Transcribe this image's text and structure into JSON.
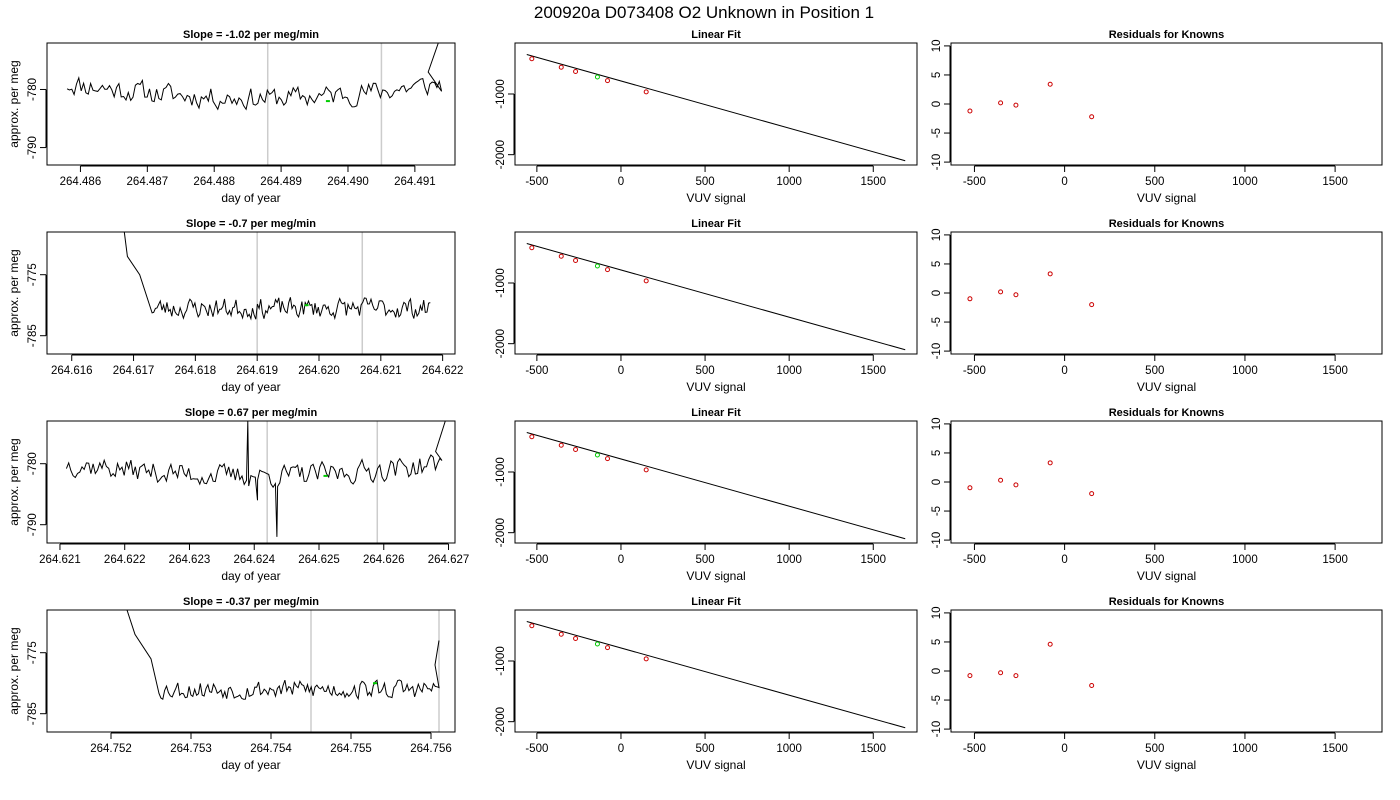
{
  "page": {
    "title": "200920a      D073408   O2 Unknown in Position  1"
  },
  "colors": {
    "trace": "#000000",
    "marker": "#00cc00",
    "vline": "#cccccc",
    "known_points": "#cc0000",
    "unknown_point": "#00cc00"
  },
  "chart_data": [
    {
      "type": "line",
      "panel": "time-trace",
      "row": 1,
      "title": "Slope =  -1.02  per meg/min",
      "xlabel": "day of year",
      "ylabel": "approx. per meg",
      "xlim": [
        264.4855,
        264.4916
      ],
      "ylim": [
        -793,
        -772
      ],
      "xticks": [
        264.486,
        264.487,
        264.488,
        264.489,
        264.49,
        264.491
      ],
      "xtick_labels": [
        "264.486",
        "264.487",
        "264.488",
        "264.489",
        "264.490",
        "264.491"
      ],
      "yticks": [
        -780,
        -790
      ],
      "ytick_labels": [
        "-780",
        "-790"
      ],
      "vlines": [
        264.4888,
        264.4905
      ],
      "marker": [
        264.4897,
        -782
      ],
      "trace": {
        "x0": 264.4858,
        "x1": 264.4914,
        "n": 160,
        "base": -779,
        "noise": 2.6,
        "trend": -2.5,
        "start": [],
        "end": [
          [
            264.4912,
            -777
          ],
          [
            264.49135,
            -772
          ]
        ],
        "seed": 11,
        "spikes": []
      }
    },
    {
      "type": "scatter",
      "panel": "linear-fit",
      "row": 1,
      "title": "Linear Fit",
      "xlabel": "VUV signal",
      "ylabel": "",
      "xlim": [
        -630,
        1760
      ],
      "ylim": [
        -2170,
        -160
      ],
      "xticks": [
        -500,
        0,
        500,
        1000,
        1500
      ],
      "xtick_labels": [
        "-500",
        "0",
        "500",
        "1000",
        "1500"
      ],
      "yticks": [
        -1000,
        -2000
      ],
      "ytick_labels": [
        "-1000",
        "-2000"
      ],
      "line": [
        [
          -560,
          -350
        ],
        [
          1690,
          -2100
        ]
      ],
      "knowns": [
        [
          -530,
          -420
        ],
        [
          -355,
          -560
        ],
        [
          -270,
          -630
        ],
        [
          -80,
          -780
        ],
        [
          150,
          -965
        ]
      ],
      "unknown": [
        -140,
        -720
      ]
    },
    {
      "type": "scatter",
      "panel": "residuals",
      "row": 1,
      "title": "Residuals for Knowns",
      "xlabel": "VUV signal",
      "ylabel": "",
      "xlim": [
        -630,
        1760
      ],
      "ylim": [
        -10.5,
        10.5
      ],
      "xticks": [
        -500,
        0,
        500,
        1000,
        1500
      ],
      "xtick_labels": [
        "-500",
        "0",
        "500",
        "1000",
        "1500"
      ],
      "yticks": [
        10,
        5,
        0,
        -5,
        -10
      ],
      "ytick_labels": [
        "10",
        "5",
        "0",
        "-5",
        "-10"
      ],
      "points": [
        [
          -525,
          -1.2
        ],
        [
          -355,
          0.2
        ],
        [
          -270,
          -0.2
        ],
        [
          -80,
          3.4
        ],
        [
          150,
          -2.2
        ]
      ]
    },
    {
      "type": "line",
      "panel": "time-trace",
      "row": 2,
      "title": "Slope =  -0.7  per meg/min",
      "xlabel": "day of year",
      "ylabel": "approx. per meg",
      "xlim": [
        264.6156,
        264.6222
      ],
      "ylim": [
        -788,
        -768
      ],
      "xticks": [
        264.616,
        264.617,
        264.618,
        264.619,
        264.62,
        264.621,
        264.622
      ],
      "xtick_labels": [
        "264.616",
        "264.617",
        "264.618",
        "264.619",
        "264.620",
        "264.621",
        "264.622"
      ],
      "yticks": [
        -775,
        -785
      ],
      "ytick_labels": [
        "-775",
        "-785"
      ],
      "vlines": [
        264.619,
        264.6207
      ],
      "marker": [
        264.6198,
        -780
      ],
      "trace": {
        "x0": 264.6173,
        "x1": 264.6218,
        "n": 170,
        "base": -780.5,
        "noise": 2.3,
        "trend": 0,
        "start": [
          [
            264.61685,
            -768
          ],
          [
            264.6169,
            -772
          ],
          [
            264.6171,
            -775
          ]
        ],
        "end": [],
        "seed": 23,
        "spikes": []
      }
    },
    {
      "type": "scatter",
      "panel": "linear-fit",
      "row": 2,
      "title": "Linear Fit",
      "xlabel": "VUV signal",
      "ylabel": "",
      "xlim": [
        -630,
        1760
      ],
      "ylim": [
        -2170,
        -160
      ],
      "xticks": [
        -500,
        0,
        500,
        1000,
        1500
      ],
      "xtick_labels": [
        "-500",
        "0",
        "500",
        "1000",
        "1500"
      ],
      "yticks": [
        -1000,
        -2000
      ],
      "ytick_labels": [
        "-1000",
        "-2000"
      ],
      "line": [
        [
          -560,
          -350
        ],
        [
          1690,
          -2100
        ]
      ],
      "knowns": [
        [
          -530,
          -420
        ],
        [
          -355,
          -560
        ],
        [
          -270,
          -630
        ],
        [
          -80,
          -780
        ],
        [
          150,
          -965
        ]
      ],
      "unknown": [
        -140,
        -720
      ]
    },
    {
      "type": "scatter",
      "panel": "residuals",
      "row": 2,
      "title": "Residuals for Knowns",
      "xlabel": "VUV signal",
      "ylabel": "",
      "xlim": [
        -630,
        1760
      ],
      "ylim": [
        -10.5,
        10.5
      ],
      "xticks": [
        -500,
        0,
        500,
        1000,
        1500
      ],
      "xtick_labels": [
        "-500",
        "0",
        "500",
        "1000",
        "1500"
      ],
      "yticks": [
        10,
        5,
        0,
        -5,
        -10
      ],
      "ytick_labels": [
        "10",
        "5",
        "0",
        "-5",
        "-10"
      ],
      "points": [
        [
          -525,
          -1.0
        ],
        [
          -355,
          0.2
        ],
        [
          -270,
          -0.3
        ],
        [
          -80,
          3.3
        ],
        [
          150,
          -2.0
        ]
      ]
    },
    {
      "type": "line",
      "panel": "time-trace",
      "row": 3,
      "title": "Slope =  0.67  per meg/min",
      "xlabel": "day of year",
      "ylabel": "approx. per meg",
      "xlim": [
        264.6208,
        264.6271
      ],
      "ylim": [
        -793,
        -773
      ],
      "xticks": [
        264.621,
        264.622,
        264.623,
        264.624,
        264.625,
        264.626,
        264.627
      ],
      "xtick_labels": [
        "264.621",
        "264.622",
        "264.623",
        "264.624",
        "264.625",
        "264.626",
        "264.627"
      ],
      "yticks": [
        -780,
        -790
      ],
      "ytick_labels": [
        "-780",
        "-790"
      ],
      "vlines": [
        264.6242,
        264.6259
      ],
      "marker": [
        264.6251,
        -782
      ],
      "trace": {
        "x0": 264.6211,
        "x1": 264.6269,
        "n": 170,
        "base": -780,
        "noise": 2.5,
        "trend": -2,
        "start": [],
        "end": [
          [
            264.6268,
            -778
          ],
          [
            264.62695,
            -773
          ]
        ],
        "seed": 37,
        "spikes": [
          [
            264.6239,
            -773
          ],
          [
            264.62405,
            -786
          ],
          [
            264.62435,
            -792
          ]
        ]
      }
    },
    {
      "type": "scatter",
      "panel": "linear-fit",
      "row": 3,
      "title": "Linear Fit",
      "xlabel": "VUV signal",
      "ylabel": "",
      "xlim": [
        -630,
        1760
      ],
      "ylim": [
        -2170,
        -160
      ],
      "xticks": [
        -500,
        0,
        500,
        1000,
        1500
      ],
      "xtick_labels": [
        "-500",
        "0",
        "500",
        "1000",
        "1500"
      ],
      "yticks": [
        -1000,
        -2000
      ],
      "ytick_labels": [
        "-1000",
        "-2000"
      ],
      "line": [
        [
          -560,
          -350
        ],
        [
          1690,
          -2100
        ]
      ],
      "knowns": [
        [
          -530,
          -420
        ],
        [
          -355,
          -560
        ],
        [
          -270,
          -630
        ],
        [
          -80,
          -780
        ],
        [
          150,
          -965
        ]
      ],
      "unknown": [
        -140,
        -720
      ]
    },
    {
      "type": "scatter",
      "panel": "residuals",
      "row": 3,
      "title": "Residuals for Knowns",
      "xlabel": "VUV signal",
      "ylabel": "",
      "xlim": [
        -630,
        1760
      ],
      "ylim": [
        -10.5,
        10.5
      ],
      "xticks": [
        -500,
        0,
        500,
        1000,
        1500
      ],
      "xtick_labels": [
        "-500",
        "0",
        "500",
        "1000",
        "1500"
      ],
      "yticks": [
        10,
        5,
        0,
        -5,
        -10
      ],
      "ytick_labels": [
        "10",
        "5",
        "0",
        "-5",
        "-10"
      ],
      "points": [
        [
          -525,
          -1.0
        ],
        [
          -355,
          0.3
        ],
        [
          -270,
          -0.5
        ],
        [
          -80,
          3.3
        ],
        [
          150,
          -2.0
        ]
      ]
    },
    {
      "type": "line",
      "panel": "time-trace",
      "row": 4,
      "title": "Slope =  -0.37  per meg/min",
      "xlabel": "day of year",
      "ylabel": "approx. per meg",
      "xlim": [
        264.7512,
        264.7563
      ],
      "ylim": [
        -788,
        -768
      ],
      "xticks": [
        264.752,
        264.753,
        264.754,
        264.755,
        264.756
      ],
      "xtick_labels": [
        "264.752",
        "264.753",
        "264.754",
        "264.755",
        "264.756"
      ],
      "yticks": [
        -775,
        -785
      ],
      "ytick_labels": [
        "-775",
        "-785"
      ],
      "vlines": [
        264.7545,
        264.7561
      ],
      "marker": [
        264.7553,
        -780
      ],
      "trace": {
        "x0": 264.7526,
        "x1": 264.7561,
        "n": 150,
        "base": -781,
        "noise": 2.2,
        "trend": 0,
        "start": [
          [
            264.7522,
            -768
          ],
          [
            264.7523,
            -772
          ],
          [
            264.7525,
            -776
          ]
        ],
        "end": [
          [
            264.75605,
            -777
          ],
          [
            264.7561,
            -773
          ]
        ],
        "seed": 53,
        "spikes": []
      }
    },
    {
      "type": "scatter",
      "panel": "linear-fit",
      "row": 4,
      "title": "Linear Fit",
      "xlabel": "VUV signal",
      "ylabel": "",
      "xlim": [
        -630,
        1760
      ],
      "ylim": [
        -2170,
        -160
      ],
      "xticks": [
        -500,
        0,
        500,
        1000,
        1500
      ],
      "xtick_labels": [
        "-500",
        "0",
        "500",
        "1000",
        "1500"
      ],
      "yticks": [
        -1000,
        -2000
      ],
      "ytick_labels": [
        "-1000",
        "-2000"
      ],
      "line": [
        [
          -560,
          -350
        ],
        [
          1690,
          -2100
        ]
      ],
      "knowns": [
        [
          -530,
          -420
        ],
        [
          -355,
          -560
        ],
        [
          -270,
          -630
        ],
        [
          -80,
          -780
        ],
        [
          150,
          -965
        ]
      ],
      "unknown": [
        -140,
        -720
      ]
    },
    {
      "type": "scatter",
      "panel": "residuals",
      "row": 4,
      "title": "Residuals for Knowns",
      "xlabel": "VUV signal",
      "ylabel": "",
      "xlim": [
        -630,
        1760
      ],
      "ylim": [
        -10.5,
        10.5
      ],
      "xticks": [
        -500,
        0,
        500,
        1000,
        1500
      ],
      "xtick_labels": [
        "-500",
        "0",
        "500",
        "1000",
        "1500"
      ],
      "yticks": [
        10,
        5,
        0,
        -5,
        -10
      ],
      "ytick_labels": [
        "10",
        "5",
        "0",
        "-5",
        "-10"
      ],
      "points": [
        [
          -525,
          -0.8
        ],
        [
          -355,
          -0.3
        ],
        [
          -270,
          -0.8
        ],
        [
          -80,
          4.6
        ],
        [
          150,
          -2.5
        ]
      ]
    }
  ]
}
